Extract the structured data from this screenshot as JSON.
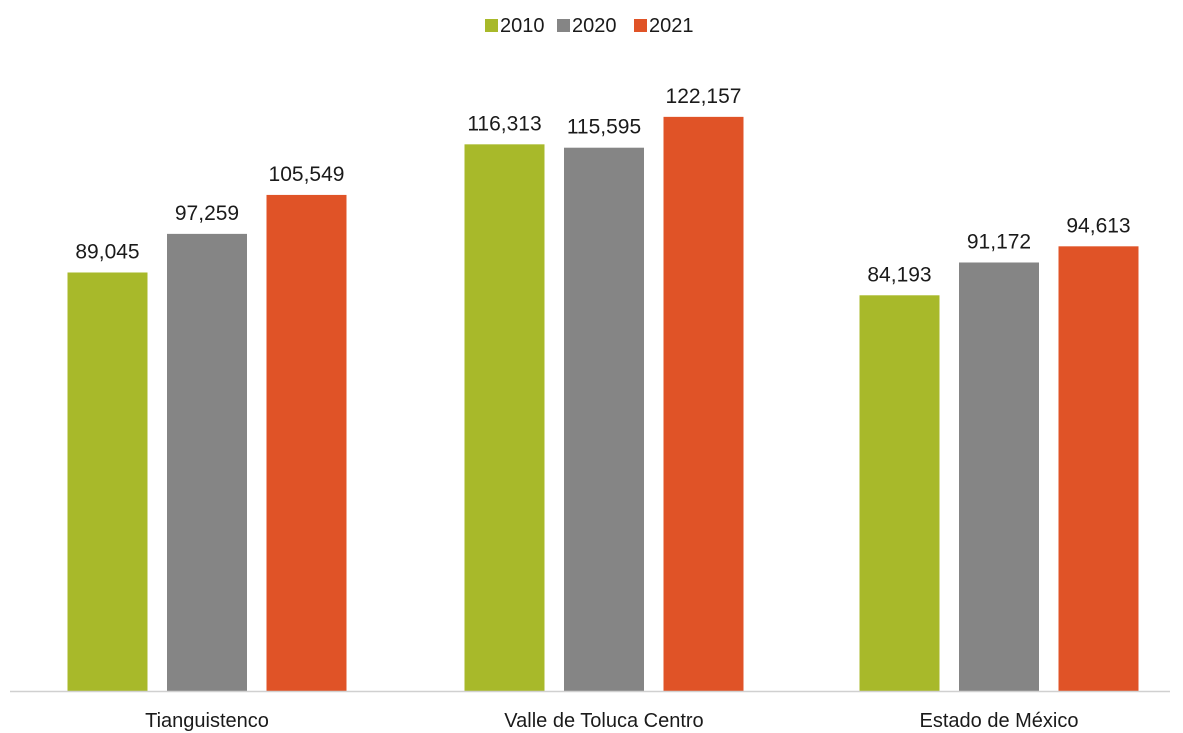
{
  "chart_data": {
    "type": "bar",
    "title": "",
    "xlabel": "",
    "ylabel": "",
    "categories": [
      "Tianguistenco",
      "Valle de Toluca Centro",
      "Estado de México"
    ],
    "series": [
      {
        "name": "2010",
        "color": "#a8b92a",
        "values": [
          89045,
          116313,
          84193
        ],
        "labels": [
          "89,045",
          "116,313",
          "84,193"
        ]
      },
      {
        "name": "2020",
        "color": "#858585",
        "values": [
          97259,
          115595,
          91172
        ],
        "labels": [
          "97,259",
          "115,595",
          "91,172"
        ]
      },
      {
        "name": "2021",
        "color": "#e05327",
        "values": [
          105549,
          122157,
          94613
        ],
        "labels": [
          "105,549",
          "122,157",
          "94,613"
        ]
      }
    ],
    "ylim": [
      0,
      140000
    ],
    "grid": false,
    "legend": "top-center",
    "axis_color": "#d0d0d0"
  }
}
